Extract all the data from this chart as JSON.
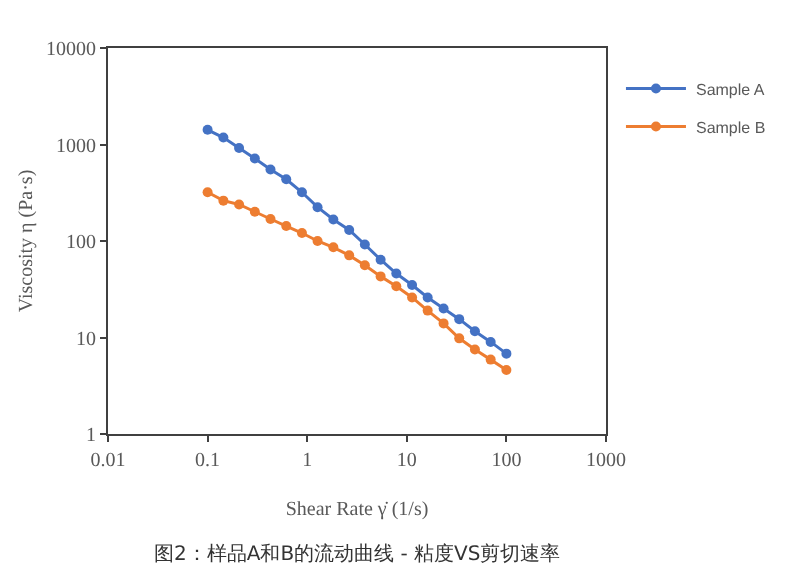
{
  "chart_data": {
    "type": "line",
    "x": [
      0.1,
      0.144,
      0.207,
      0.298,
      0.428,
      0.616,
      0.886,
      1.27,
      1.83,
      2.64,
      3.79,
      5.46,
      7.85,
      11.3,
      16.2,
      23.4,
      33.6,
      48.3,
      69.5,
      100
    ],
    "series": [
      {
        "name": "Sample A",
        "color": "#4472c4",
        "values": [
          1420,
          1180,
          920,
          716,
          551,
          436,
          320,
          224,
          167,
          130,
          92,
          64,
          46,
          35,
          26,
          20,
          15.5,
          11.6,
          9.0,
          6.8
        ]
      },
      {
        "name": "Sample B",
        "color": "#ed7d31",
        "values": [
          320,
          262,
          239,
          201,
          169,
          143,
          121,
          100,
          86,
          71,
          56,
          43,
          34,
          26,
          19,
          14,
          9.8,
          7.5,
          5.9,
          4.6
        ]
      }
    ],
    "xlabel": "Shear Rate γ̇ (1/s)",
    "ylabel": "Viscosity η (Pa·s)",
    "log": "xy",
    "xlim": [
      0.01,
      1000
    ],
    "xticks": [
      0.01,
      0.1,
      1,
      10,
      100,
      1000
    ],
    "ylim": [
      1,
      10000
    ],
    "yticks": [
      1,
      10,
      100,
      1000,
      10000
    ],
    "legend": "top right",
    "marker": "circle",
    "line_style": "solid",
    "annotations": [
      "图2：样品A和B的流动曲线 - 粘度VS剪切速率"
    ]
  }
}
